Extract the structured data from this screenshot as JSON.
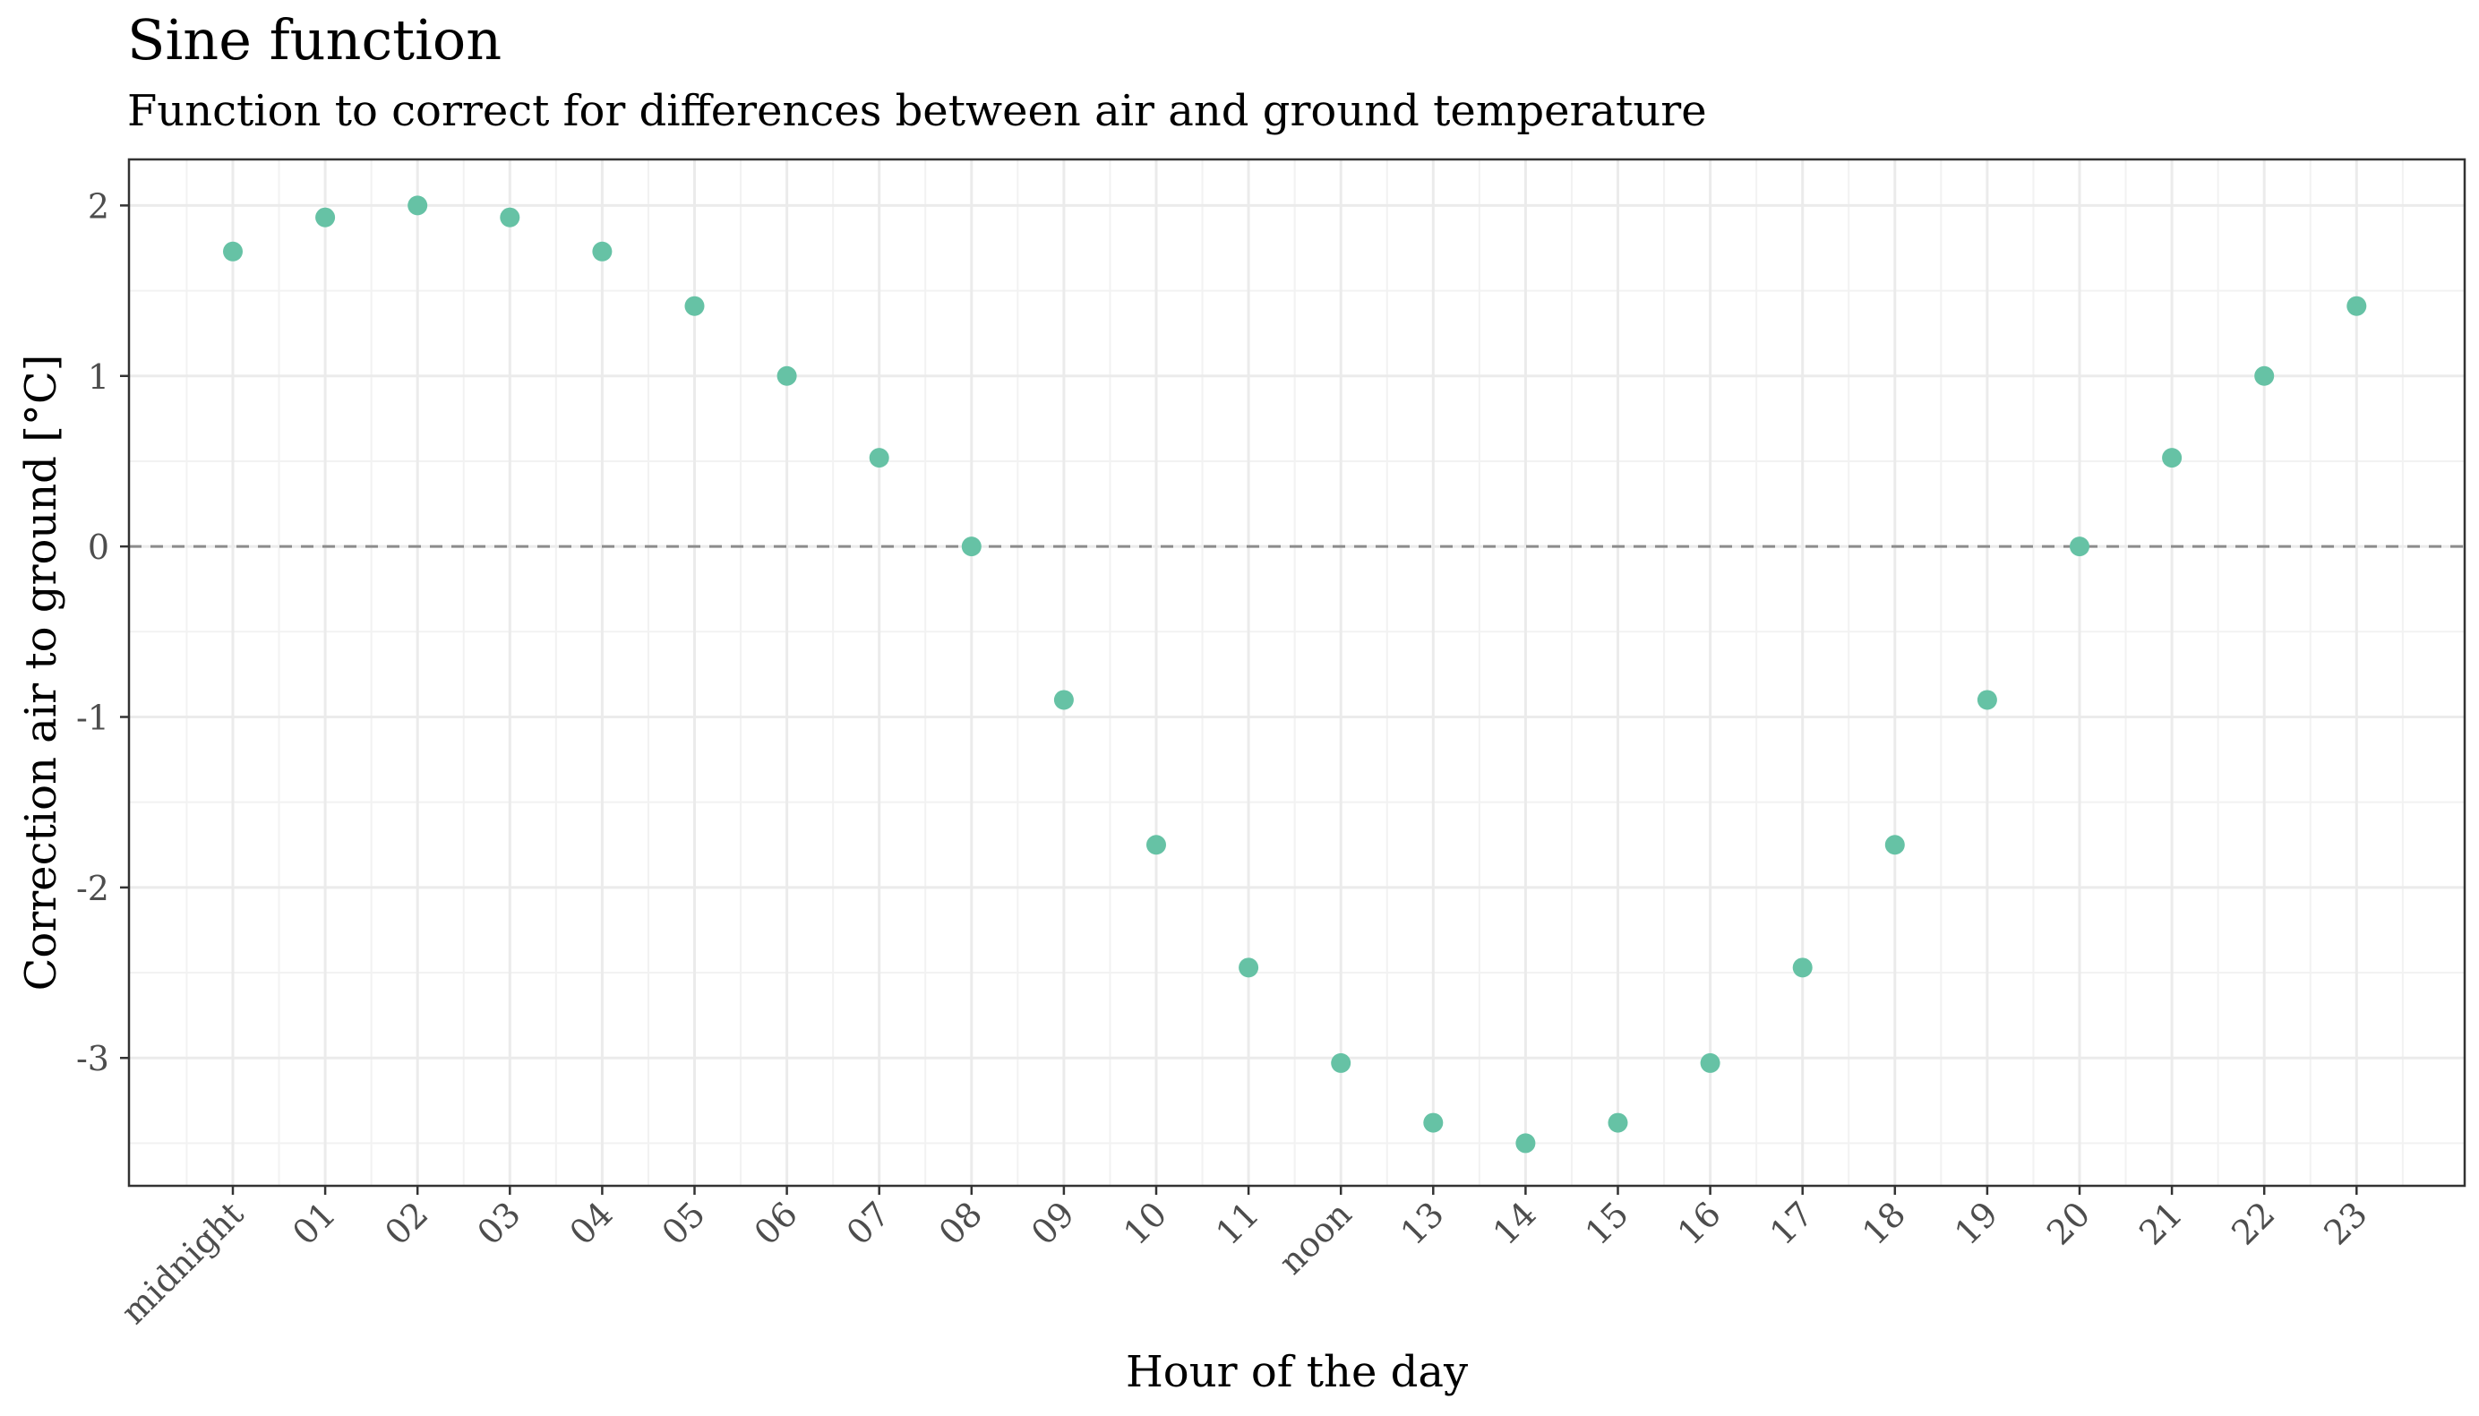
{
  "chart_data": {
    "type": "scatter",
    "title": "Sine function",
    "subtitle": "Function to correct for differences between air and ground temperature",
    "xlabel": "Hour of the day",
    "ylabel": "Correction air to ground [°C]",
    "categories": [
      "midnight",
      "01",
      "02",
      "03",
      "04",
      "05",
      "06",
      "07",
      "08",
      "09",
      "10",
      "11",
      "noon",
      "13",
      "14",
      "15",
      "16",
      "17",
      "18",
      "19",
      "20",
      "21",
      "22",
      "23"
    ],
    "values": [
      1.73,
      1.93,
      2.0,
      1.93,
      1.73,
      1.41,
      1.0,
      0.52,
      0.0,
      -0.9,
      -1.75,
      -2.47,
      -3.03,
      -3.38,
      -3.5,
      -3.38,
      -3.03,
      -2.47,
      -1.75,
      -0.9,
      0.0,
      0.52,
      1.0,
      1.41
    ],
    "ylim": [
      -3.75,
      2.27
    ],
    "yticks": [
      2,
      1,
      0,
      -1,
      -2,
      -3
    ],
    "ytick_labels": [
      "2",
      "1",
      "0",
      "-1",
      "-2",
      "-3"
    ],
    "reference_line": 0,
    "grid": true,
    "point_color": "#66c2a5"
  }
}
